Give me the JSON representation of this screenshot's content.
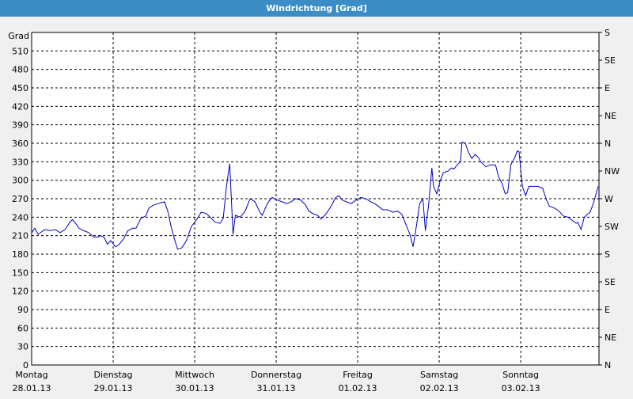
{
  "chart_data": {
    "type": "line",
    "title": "Windrichtung [Grad]",
    "ylabel": "Grad",
    "xlim": [
      0,
      6.96
    ],
    "xticks": [
      {
        "value": 0,
        "label": "Montag",
        "date": "28.01.13"
      },
      {
        "value": 1,
        "label": "Dienstag",
        "date": "29.01.13"
      },
      {
        "value": 2,
        "label": "Mittwoch",
        "date": "30.01.13"
      },
      {
        "value": 3,
        "label": "Donnerstag",
        "date": "31.01.13"
      },
      {
        "value": 4,
        "label": "Freitag",
        "date": "01.02.13"
      },
      {
        "value": 5,
        "label": "Samstag",
        "date": "02.02.13"
      },
      {
        "value": 6,
        "label": "Sonntag",
        "date": "03.02.13"
      }
    ],
    "ylim": [
      0,
      540
    ],
    "yticks": [
      0,
      30,
      60,
      90,
      120,
      150,
      180,
      210,
      240,
      270,
      300,
      330,
      360,
      390,
      420,
      450,
      480,
      510
    ],
    "y2lim": [
      0,
      540
    ],
    "y2ticks": [
      {
        "value": 0,
        "label": "N"
      },
      {
        "value": 45,
        "label": "NE"
      },
      {
        "value": 90,
        "label": "E"
      },
      {
        "value": 135,
        "label": "SE"
      },
      {
        "value": 180,
        "label": "S"
      },
      {
        "value": 225,
        "label": "SW"
      },
      {
        "value": 270,
        "label": "W"
      },
      {
        "value": 315,
        "label": "NW"
      },
      {
        "value": 360,
        "label": "N"
      },
      {
        "value": 405,
        "label": "NE"
      },
      {
        "value": 450,
        "label": "E"
      },
      {
        "value": 495,
        "label": "SE"
      },
      {
        "value": 540,
        "label": "S"
      }
    ],
    "grid": true,
    "series": [
      {
        "color": "#0000c0",
        "x": [
          0,
          0.04,
          0.08,
          0.14,
          0.17,
          0.23,
          0.29,
          0.35,
          0.41,
          0.47,
          0.5,
          0.54,
          0.58,
          0.64,
          0.7,
          0.76,
          0.82,
          0.85,
          0.89,
          0.93,
          0.97,
          1.03,
          1.07,
          1.13,
          1.18,
          1.24,
          1.28,
          1.34,
          1.4,
          1.44,
          1.5,
          1.55,
          1.63,
          1.67,
          1.71,
          1.75,
          1.79,
          1.84,
          1.9,
          1.96,
          2.02,
          2.08,
          2.14,
          2.19,
          2.25,
          2.31,
          2.35,
          2.39,
          2.43,
          2.47,
          2.5,
          2.56,
          2.62,
          2.68,
          2.74,
          2.8,
          2.83,
          2.89,
          2.95,
          3.01,
          3.07,
          3.13,
          3.18,
          3.24,
          3.3,
          3.36,
          3.4,
          3.46,
          3.51,
          3.55,
          3.61,
          3.67,
          3.73,
          3.77,
          3.81,
          3.86,
          3.92,
          3.98,
          4.04,
          4.1,
          4.16,
          4.21,
          4.25,
          4.31,
          4.37,
          4.43,
          4.49,
          4.54,
          4.58,
          4.64,
          4.68,
          4.72,
          4.76,
          4.8,
          4.83,
          4.87,
          4.91,
          4.93,
          4.97,
          5.01,
          5.05,
          5.11,
          5.15,
          5.18,
          5.22,
          5.26,
          5.28,
          5.32,
          5.36,
          5.4,
          5.44,
          5.48,
          5.51,
          5.57,
          5.63,
          5.69,
          5.73,
          5.77,
          5.81,
          5.84,
          5.88,
          5.92,
          5.96,
          5.98,
          6.02,
          6.06,
          6.1,
          6.16,
          6.21,
          6.27,
          6.31,
          6.35,
          6.41,
          6.47,
          6.52,
          6.58,
          6.64,
          6.68,
          6.7,
          6.74,
          6.78,
          6.82,
          6.85,
          6.89,
          6.95
        ],
        "values": [
          215,
          222,
          212,
          218,
          220,
          218,
          220,
          215,
          220,
          232,
          236,
          230,
          222,
          218,
          215,
          208,
          208,
          210,
          207,
          196,
          202,
          192,
          195,
          205,
          218,
          222,
          222,
          238,
          242,
          255,
          260,
          262,
          265,
          250,
          225,
          205,
          188,
          190,
          202,
          225,
          235,
          248,
          246,
          240,
          232,
          230,
          238,
          290,
          327,
          212,
          243,
          240,
          250,
          270,
          265,
          248,
          243,
          262,
          272,
          268,
          265,
          262,
          265,
          270,
          268,
          260,
          250,
          245,
          243,
          237,
          245,
          257,
          272,
          275,
          268,
          265,
          262,
          268,
          272,
          270,
          265,
          262,
          258,
          252,
          252,
          248,
          250,
          245,
          232,
          212,
          192,
          225,
          262,
          270,
          218,
          260,
          320,
          290,
          278,
          298,
          312,
          315,
          320,
          318,
          325,
          330,
          362,
          360,
          345,
          335,
          342,
          337,
          330,
          322,
          325,
          325,
          305,
          295,
          278,
          280,
          325,
          335,
          348,
          346,
          290,
          275,
          290,
          290,
          290,
          287,
          270,
          258,
          255,
          250,
          242,
          240,
          234,
          230,
          232,
          220,
          240,
          245,
          248,
          262,
          290
        ]
      }
    ]
  }
}
